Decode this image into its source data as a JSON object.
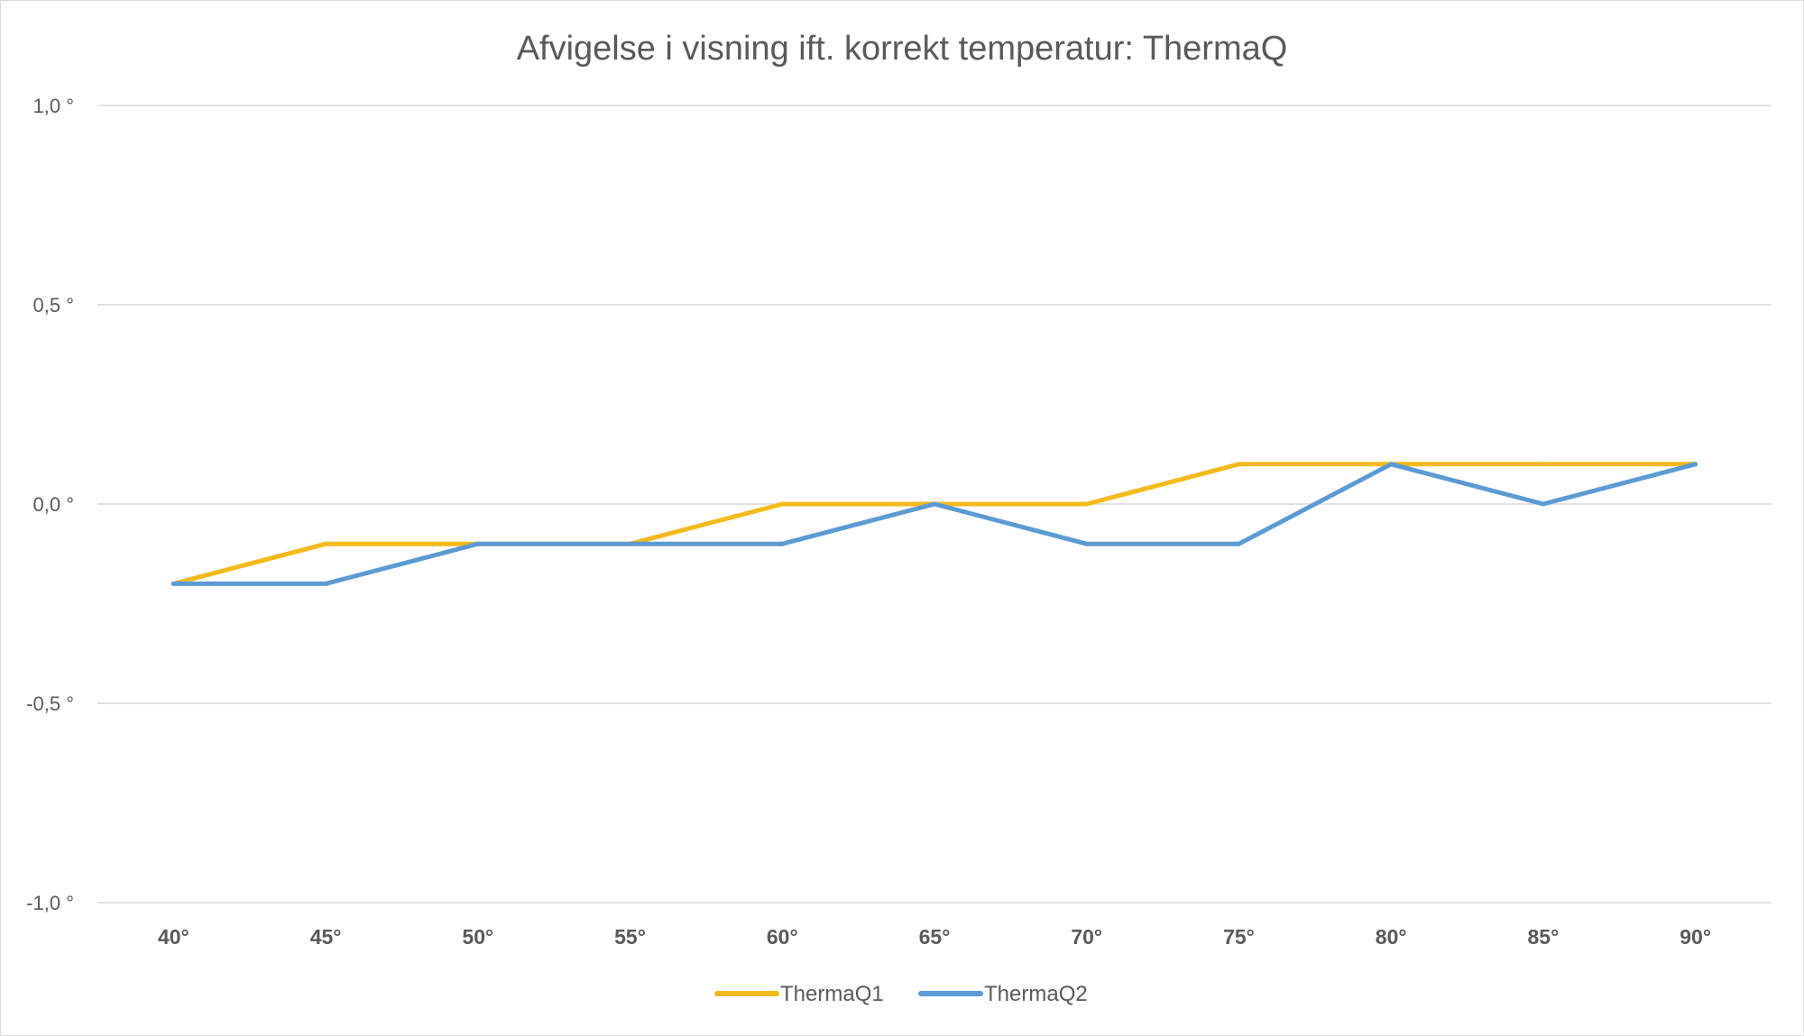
{
  "chart_data": {
    "type": "line",
    "title": "Afvigelse i visning ift. korrekt temperatur: ThermaQ",
    "xlabel": "",
    "ylabel": "",
    "categories": [
      "40°",
      "45°",
      "50°",
      "55°",
      "60°",
      "65°",
      "70°",
      "75°",
      "80°",
      "85°",
      "90°"
    ],
    "ylim": [
      -1.0,
      1.0
    ],
    "yticks": [
      1.0,
      0.5,
      0.0,
      -0.5,
      -1.0
    ],
    "ytick_labels": [
      "1,0 °",
      "0,5 °",
      "0,0 °",
      "-0,5 °",
      "-1,0 °"
    ],
    "grid": true,
    "legend_position": "bottom",
    "series": [
      {
        "name": "ThermaQ1",
        "color": "#f5b91c",
        "values": [
          -0.2,
          -0.1,
          -0.1,
          -0.1,
          0.0,
          0.0,
          0.0,
          0.1,
          0.1,
          0.1,
          0.1
        ]
      },
      {
        "name": "ThermaQ2",
        "color": "#5b9bd5",
        "values": [
          -0.2,
          -0.2,
          -0.1,
          -0.1,
          -0.1,
          0.0,
          -0.1,
          -0.1,
          0.1,
          0.0,
          0.1
        ]
      }
    ]
  }
}
